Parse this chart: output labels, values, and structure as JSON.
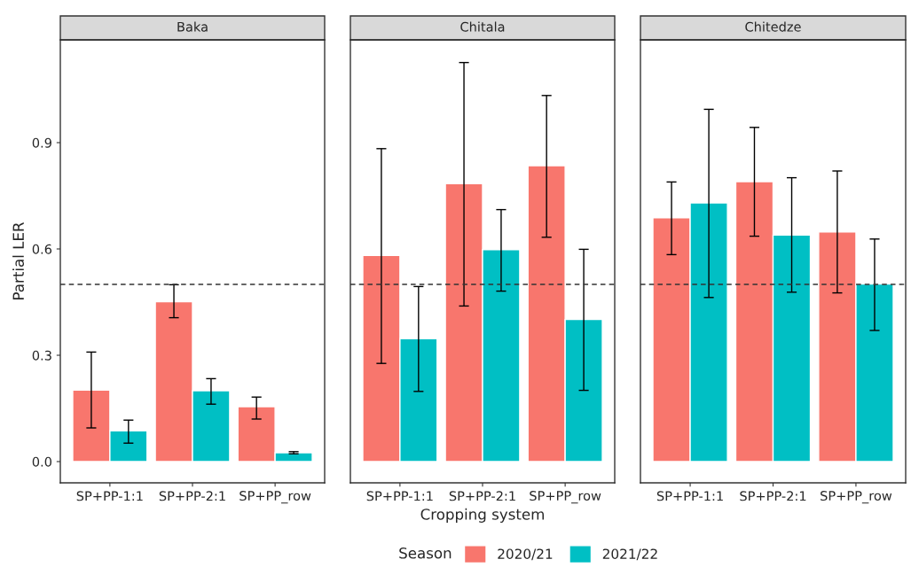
{
  "chart_data": [
    {
      "type": "bar",
      "title": "Baka",
      "ylabel": "Partial LER",
      "legend_title": "Season",
      "legend": "bottom",
      "categories": [
        "SP+PP-1:1",
        "SP+PP-2:1",
        "SP+PP_row"
      ],
      "series": [
        {
          "name": "2020/21",
          "color": "#f8766d",
          "values": [
            0.202,
            0.451,
            0.155
          ],
          "errors": [
            [
              0.095,
              0.309
            ],
            [
              0.406,
              0.499
            ],
            [
              0.12,
              0.182
            ]
          ]
        },
        {
          "name": "2021/22",
          "color": "#00bfc4",
          "values": [
            0.087,
            0.2,
            0.025
          ],
          "errors": [
            [
              0.052,
              0.117
            ],
            [
              0.162,
              0.234
            ],
            [
              0.022,
              0.028
            ]
          ]
        }
      ],
      "ylim": [
        -0.06,
        1.19
      ],
      "yticks": [
        {
          "value": 0,
          "label": "0.0"
        },
        0.3,
        0.6,
        0.9
      ],
      "ref_lines": [
        {
          "axis": "y",
          "value": 0.5,
          "line_style": "dashed"
        }
      ],
      "grid": false
    },
    {
      "type": "bar",
      "title": "Chitala",
      "xlabel": "Cropping system",
      "categories": [
        "SP+PP-1:1",
        "SP+PP-2:1",
        "SP+PP_row"
      ],
      "series": [
        {
          "name": "2020/21",
          "color": "#f8766d",
          "values": [
            0.582,
            0.784,
            0.835
          ],
          "errors": [
            [
              0.277,
              0.883
            ],
            [
              0.439,
              1.126
            ],
            [
              0.633,
              1.033
            ]
          ]
        },
        {
          "name": "2021/22",
          "color": "#00bfc4",
          "values": [
            0.347,
            0.598,
            0.401
          ],
          "errors": [
            [
              0.198,
              0.494
            ],
            [
              0.481,
              0.711
            ],
            [
              0.201,
              0.599
            ]
          ]
        }
      ],
      "ylim": [
        -0.06,
        1.19
      ],
      "tick_labels": "x",
      "ref_lines": [
        {
          "axis": "y",
          "value": 0.5,
          "line_style": "dashed"
        }
      ],
      "grid": false
    },
    {
      "type": "bar",
      "title": "Chitedze",
      "categories": [
        "SP+PP-1:1",
        "SP+PP-2:1",
        "SP+PP_row"
      ],
      "series": [
        {
          "name": "2020/21",
          "color": "#f8766d",
          "values": [
            0.688,
            0.79,
            0.648
          ],
          "errors": [
            [
              0.584,
              0.789
            ],
            [
              0.636,
              0.943
            ],
            [
              0.476,
              0.82
            ]
          ]
        },
        {
          "name": "2021/22",
          "color": "#00bfc4",
          "values": [
            0.73,
            0.639,
            0.501
          ],
          "errors": [
            [
              0.463,
              0.994
            ],
            [
              0.478,
              0.801
            ],
            [
              0.37,
              0.628
            ]
          ]
        }
      ],
      "ylim": [
        -0.06,
        1.19
      ],
      "tick_labels": "x",
      "ref_lines": [
        {
          "axis": "y",
          "value": 0.5,
          "line_style": "dashed"
        }
      ],
      "grid": false
    }
  ]
}
